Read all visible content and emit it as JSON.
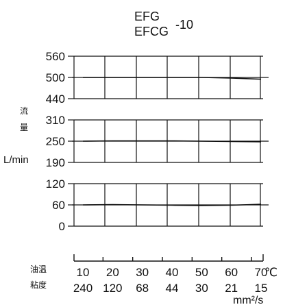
{
  "chart_data": {
    "type": "line",
    "title_lines": [
      "EFG",
      "EFCG"
    ],
    "title_suffix": "-10",
    "ylabel_cjk": [
      "流",
      "量"
    ],
    "ylabel": "L/min",
    "bands": [
      {
        "ticks": [
          "560",
          "500",
          "440"
        ],
        "ylim": [
          440,
          560
        ]
      },
      {
        "ticks": [
          "310",
          "250",
          "190"
        ],
        "ylim": [
          190,
          310
        ]
      },
      {
        "ticks": [
          "120",
          "60",
          "0"
        ],
        "ylim": [
          0,
          120
        ]
      }
    ],
    "x_row_label": "油温",
    "x": [
      10,
      20,
      30,
      40,
      50,
      60,
      70
    ],
    "x_unit": "℃",
    "viscosity_row_label": "粘度",
    "viscosity": [
      "240",
      "120",
      "68",
      "44",
      "30",
      "21",
      "15"
    ],
    "viscosity_unit": "mm²/s",
    "series": [
      {
        "values": [
          500,
          500,
          500,
          500,
          500,
          498,
          495
        ]
      },
      {
        "values": [
          250,
          251,
          251,
          251,
          250,
          249,
          248
        ]
      },
      {
        "values": [
          60,
          61,
          60,
          59,
          58,
          59,
          62
        ]
      }
    ]
  }
}
